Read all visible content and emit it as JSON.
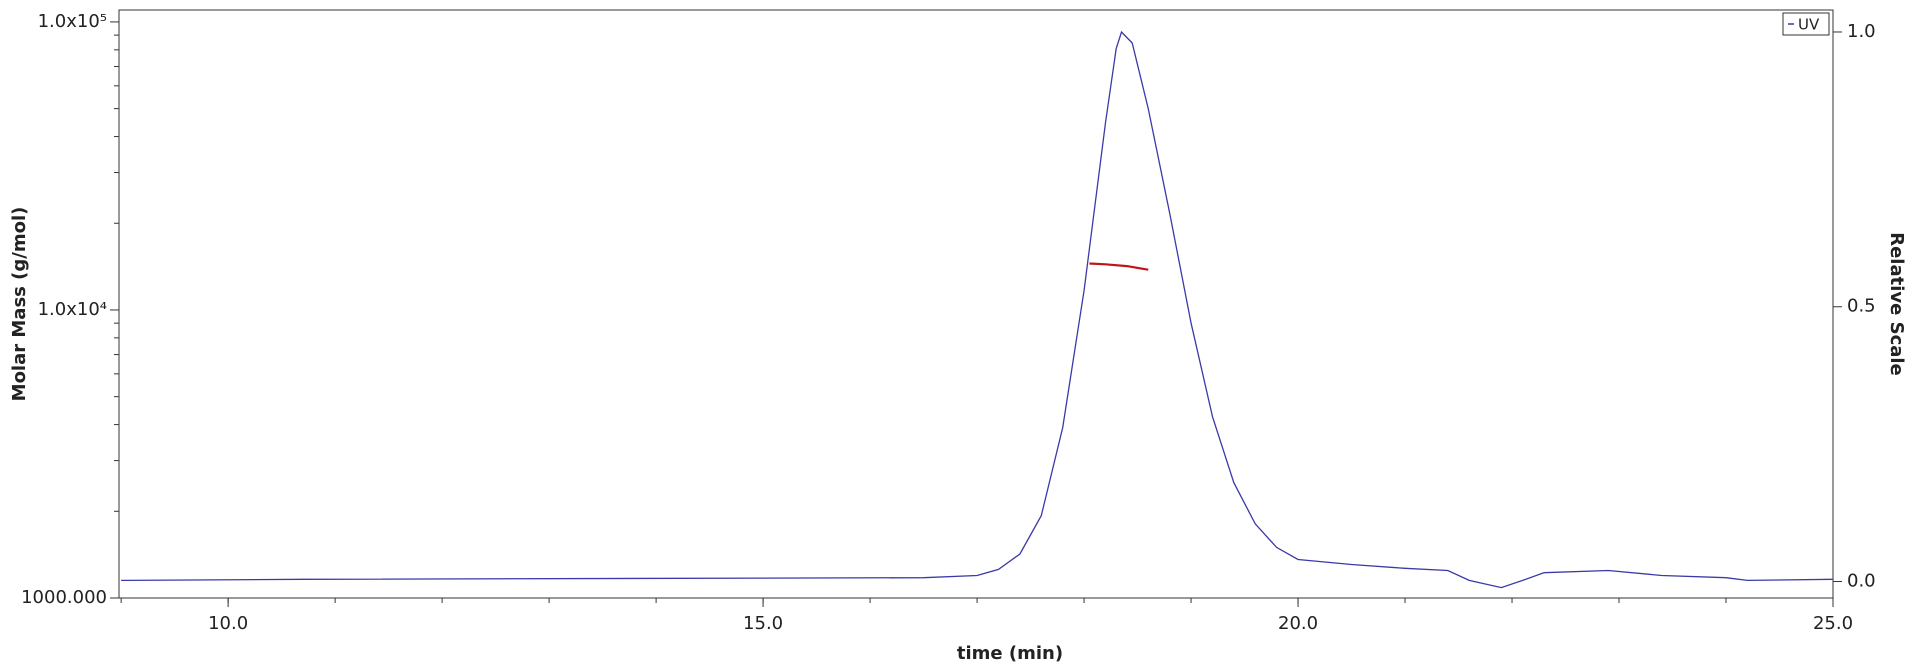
{
  "chart_data": {
    "type": "line",
    "xlabel": "time (min)",
    "ylabel": "Molar Mass (g/mol)",
    "y2label": "Relative Scale",
    "xlim": [
      8.98,
      25
    ],
    "xticks": [
      {
        "value": 10,
        "label": "10.0"
      },
      {
        "value": 15,
        "label": "15.0"
      },
      {
        "value": 20,
        "label": "20.0"
      },
      {
        "value": 25,
        "label": "25.0"
      }
    ],
    "ylim": [
      1000,
      110000
    ],
    "ylog": true,
    "yticks": [
      {
        "value": 1000,
        "label": "1000.000"
      },
      {
        "value": 10000,
        "label": "1.0x10⁴"
      },
      {
        "value": 100000,
        "label": "1.0x10⁵"
      }
    ],
    "y2lim": [
      -0.03,
      1.04
    ],
    "y2ticks": [
      {
        "value": 0,
        "label": "0.0"
      },
      {
        "value": 0.5,
        "label": "0.5"
      },
      {
        "value": 1,
        "label": "1.0"
      }
    ],
    "legend": "upper right",
    "series": [
      {
        "name": "UV",
        "color": "#3a3aa8",
        "axis": "y2",
        "x": [
          9.0,
          10.7,
          16.5,
          17.0,
          17.2,
          17.4,
          17.6,
          17.8,
          18.0,
          18.2,
          18.3,
          18.35,
          18.45,
          18.6,
          18.8,
          19.0,
          19.2,
          19.4,
          19.6,
          19.8,
          20.0,
          20.5,
          21.0,
          21.4,
          21.6,
          21.9,
          22.1,
          22.3,
          22.9,
          23.4,
          24.0,
          24.2,
          25.0
        ],
        "values": [
          0.002,
          0.004,
          0.007,
          0.011,
          0.022,
          0.05,
          0.12,
          0.28,
          0.53,
          0.835,
          0.97,
          1.0,
          0.98,
          0.86,
          0.67,
          0.47,
          0.3,
          0.18,
          0.105,
          0.062,
          0.04,
          0.031,
          0.024,
          0.02,
          0.002,
          -0.011,
          0.002,
          0.016,
          0.02,
          0.011,
          0.007,
          0.002,
          0.004
        ]
      },
      {
        "color": "#c0141c",
        "axis": "y",
        "x": [
          18.05,
          18.2,
          18.4,
          18.6
        ],
        "values": [
          14500,
          14400,
          14200,
          13800
        ]
      }
    ]
  }
}
